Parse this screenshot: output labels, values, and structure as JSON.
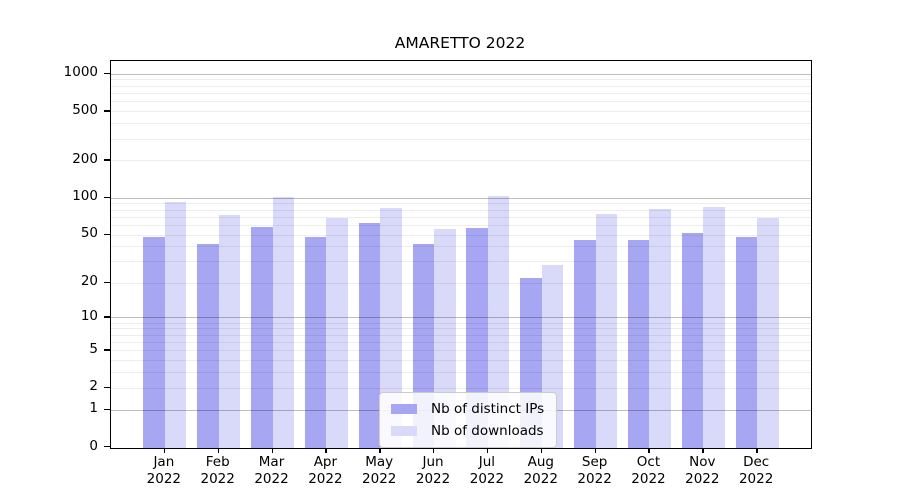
{
  "chart_data": {
    "type": "bar",
    "title": "AMARETTO 2022",
    "categories": [
      "Jan 2022",
      "Feb 2022",
      "Mar 2022",
      "Apr 2022",
      "May 2022",
      "Jun 2022",
      "Jul 2022",
      "Aug 2022",
      "Sep 2022",
      "Oct 2022",
      "Nov 2022",
      "Dec 2022"
    ],
    "x_tick_months": [
      "Jan",
      "Feb",
      "Mar",
      "Apr",
      "May",
      "Jun",
      "Jul",
      "Aug",
      "Sep",
      "Oct",
      "Nov",
      "Dec"
    ],
    "x_tick_year": "2022",
    "series": [
      {
        "name": "Nb of distinct IPs",
        "color": "#a6a6f2",
        "values": [
          48,
          42,
          58,
          48,
          62,
          42,
          57,
          22,
          45,
          45,
          52,
          48
        ]
      },
      {
        "name": "Nb of downloads",
        "color": "#d9d9f9",
        "values": [
          93,
          72,
          101,
          68,
          82,
          56,
          104,
          28,
          74,
          81,
          84,
          68
        ]
      }
    ],
    "yscale": "log1p",
    "ylim": [
      0,
      1270
    ],
    "yticks": [
      0,
      1,
      2,
      5,
      10,
      20,
      50,
      100,
      200,
      500,
      1000
    ],
    "minor_grid_decades": [
      1,
      10,
      100
    ],
    "grid": true,
    "legend_position": "lower center",
    "xlabel": "",
    "ylabel": ""
  }
}
